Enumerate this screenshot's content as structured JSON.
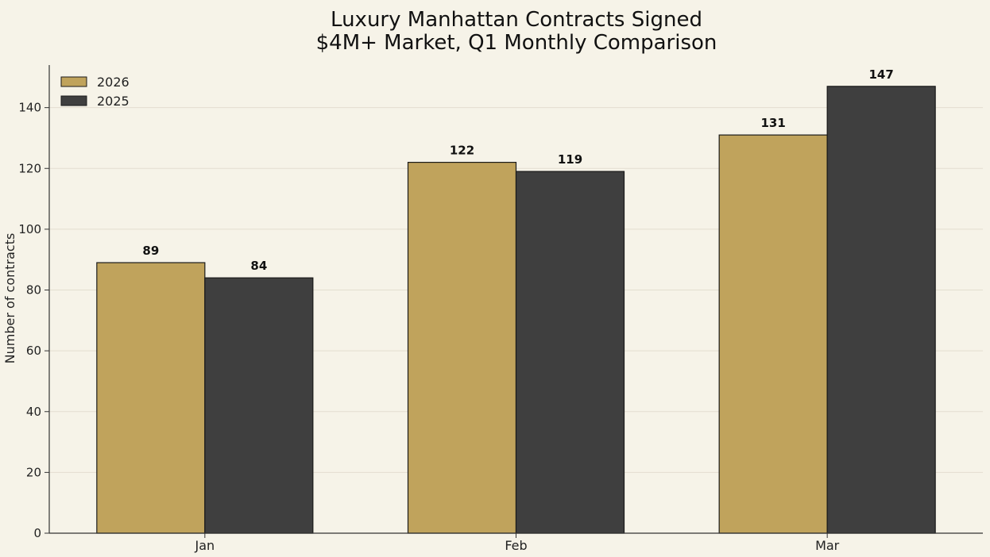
{
  "chart_data": {
    "type": "bar",
    "title": "Luxury Manhattan Contracts Signed",
    "subtitle": "$4M+ Market, Q1 Monthly Comparison",
    "xlabel": "",
    "ylabel": "Number of contracts",
    "categories": [
      "Jan",
      "Feb",
      "Mar"
    ],
    "series": [
      {
        "name": "2026",
        "values": [
          89,
          122,
          131
        ],
        "color": "#c0a35c"
      },
      {
        "name": "2025",
        "values": [
          84,
          119,
          147
        ],
        "color": "#3f3f3f"
      }
    ],
    "ylim": [
      0,
      154
    ],
    "yticks": [
      0,
      20,
      40,
      60,
      80,
      100,
      120,
      140
    ],
    "grid": true,
    "legend_position": "top-left",
    "data_labels": true
  },
  "colors": {
    "background": "#f6f3e8",
    "grid": "#e3ded0",
    "axis": "#333333",
    "bar_edge": "#1a1a1a"
  }
}
